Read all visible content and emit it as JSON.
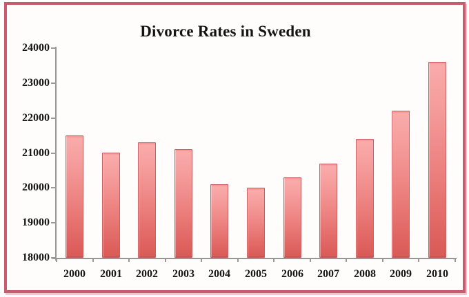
{
  "window": {
    "background_color": "#fefdfb",
    "frame_border_color": "#c85c6e",
    "frame_shadow_color": "#e8b0ba"
  },
  "chart_data": {
    "type": "bar",
    "title": "Divorce Rates in Sweden",
    "categories": [
      "2000",
      "2001",
      "2002",
      "2003",
      "2004",
      "2005",
      "2006",
      "2007",
      "2008",
      "2009",
      "2010"
    ],
    "values": [
      21500,
      21000,
      21300,
      21100,
      20100,
      20000,
      20300,
      20700,
      21400,
      22200,
      23600
    ],
    "xlabel": "",
    "ylabel": "",
    "ylim": [
      18000,
      24000
    ],
    "yticks": [
      18000,
      19000,
      20000,
      21000,
      22000,
      23000,
      24000
    ],
    "grid": false,
    "legend_position": "none",
    "bar_color_top": "#f9abaa",
    "bar_color_bottom": "#d95a57",
    "bar_border_color": "#c66062",
    "axis_color": "#969696",
    "label_color": "#161616"
  }
}
